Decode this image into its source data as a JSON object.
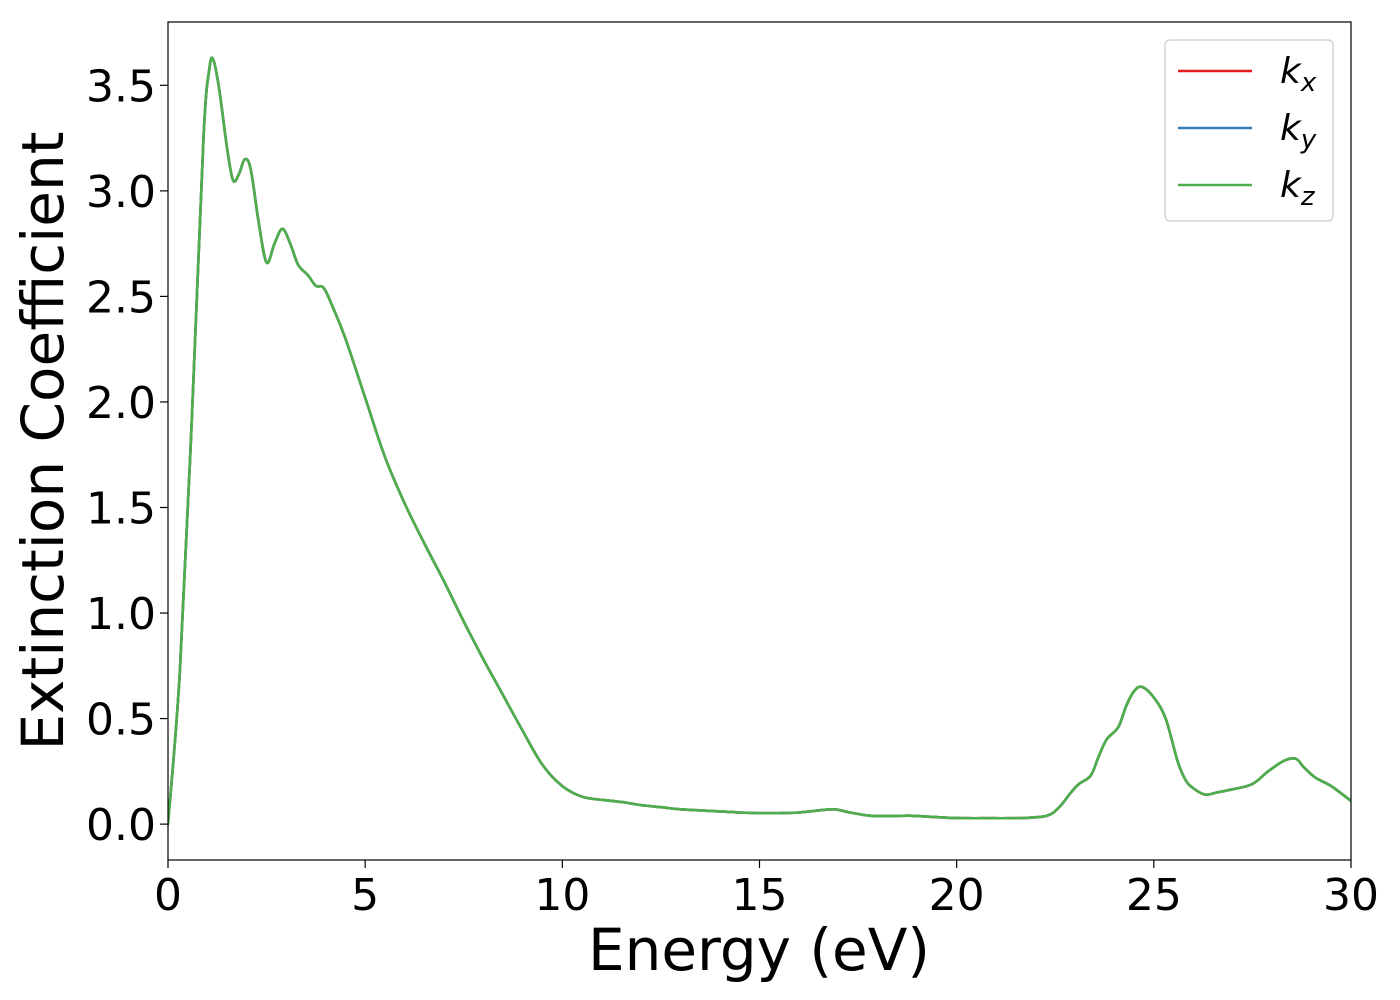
{
  "chart_data": {
    "type": "line",
    "title": "",
    "xlabel": "Energy (eV)",
    "ylabel": "Extinction Coefficient",
    "xlim": [
      0,
      30
    ],
    "ylim": [
      -0.17,
      3.8
    ],
    "xticks": [
      0,
      5,
      10,
      15,
      20,
      25,
      30
    ],
    "xtick_labels": [
      "0",
      "5",
      "10",
      "15",
      "20",
      "25",
      "30"
    ],
    "yticks": [
      0.0,
      0.5,
      1.0,
      1.5,
      2.0,
      2.5,
      3.0,
      3.5
    ],
    "ytick_labels": [
      "0.0",
      "0.5",
      "1.0",
      "1.5",
      "2.0",
      "2.5",
      "3.0",
      "3.5"
    ],
    "grid": false,
    "legend": {
      "placement": "top-right"
    },
    "x": [
      0,
      0.3,
      0.6,
      0.9,
      1.05,
      1.15,
      1.3,
      1.5,
      1.65,
      1.8,
      1.95,
      2.1,
      2.3,
      2.5,
      2.7,
      2.9,
      3.1,
      3.3,
      3.55,
      3.75,
      3.95,
      4.2,
      4.5,
      5.0,
      5.5,
      6.0,
      6.5,
      7.0,
      7.5,
      8.0,
      8.5,
      9.0,
      9.5,
      10.0,
      10.5,
      11.0,
      11.5,
      12.0,
      12.5,
      13.0,
      13.5,
      14.0,
      14.5,
      15.0,
      15.5,
      16.0,
      16.5,
      16.9,
      17.3,
      17.8,
      18.3,
      18.8,
      19.3,
      19.8,
      20.3,
      20.8,
      21.3,
      21.8,
      22.3,
      22.6,
      22.9,
      23.1,
      23.4,
      23.6,
      23.8,
      24.1,
      24.3,
      24.5,
      24.7,
      25.0,
      25.3,
      25.6,
      25.8,
      26.0,
      26.3,
      26.6,
      27.0,
      27.5,
      27.9,
      28.3,
      28.6,
      28.8,
      29.1,
      29.5,
      30.0
    ],
    "series": [
      {
        "name": "k_x",
        "color": "#e41a1c",
        "values": [
          0.0,
          0.72,
          1.9,
          3.25,
          3.58,
          3.62,
          3.48,
          3.2,
          3.05,
          3.08,
          3.15,
          3.1,
          2.85,
          2.66,
          2.75,
          2.82,
          2.75,
          2.65,
          2.6,
          2.55,
          2.54,
          2.44,
          2.3,
          2.02,
          1.74,
          1.52,
          1.33,
          1.15,
          0.96,
          0.78,
          0.61,
          0.44,
          0.28,
          0.18,
          0.13,
          0.115,
          0.105,
          0.09,
          0.08,
          0.07,
          0.065,
          0.06,
          0.055,
          0.052,
          0.052,
          0.055,
          0.065,
          0.07,
          0.055,
          0.04,
          0.038,
          0.04,
          0.035,
          0.03,
          0.028,
          0.028,
          0.028,
          0.03,
          0.04,
          0.08,
          0.15,
          0.19,
          0.23,
          0.32,
          0.4,
          0.46,
          0.56,
          0.63,
          0.65,
          0.6,
          0.5,
          0.3,
          0.21,
          0.17,
          0.14,
          0.15,
          0.165,
          0.19,
          0.25,
          0.3,
          0.31,
          0.27,
          0.22,
          0.18,
          0.11
        ]
      },
      {
        "name": "k_y",
        "color": "#377eb8",
        "values": [
          0.0,
          0.72,
          1.9,
          3.25,
          3.58,
          3.62,
          3.48,
          3.2,
          3.05,
          3.08,
          3.15,
          3.1,
          2.85,
          2.66,
          2.75,
          2.82,
          2.75,
          2.65,
          2.6,
          2.55,
          2.54,
          2.44,
          2.3,
          2.02,
          1.74,
          1.52,
          1.33,
          1.15,
          0.96,
          0.78,
          0.61,
          0.44,
          0.28,
          0.18,
          0.13,
          0.115,
          0.105,
          0.09,
          0.08,
          0.07,
          0.065,
          0.06,
          0.055,
          0.052,
          0.052,
          0.055,
          0.065,
          0.07,
          0.055,
          0.04,
          0.038,
          0.04,
          0.035,
          0.03,
          0.028,
          0.028,
          0.028,
          0.03,
          0.04,
          0.08,
          0.15,
          0.19,
          0.23,
          0.32,
          0.4,
          0.46,
          0.56,
          0.63,
          0.65,
          0.6,
          0.5,
          0.3,
          0.21,
          0.17,
          0.14,
          0.15,
          0.165,
          0.19,
          0.25,
          0.3,
          0.31,
          0.27,
          0.22,
          0.18,
          0.11
        ]
      },
      {
        "name": "k_z",
        "color": "#4daf4a",
        "values": [
          0.0,
          0.72,
          1.9,
          3.25,
          3.58,
          3.62,
          3.48,
          3.2,
          3.05,
          3.08,
          3.15,
          3.1,
          2.85,
          2.66,
          2.75,
          2.82,
          2.75,
          2.65,
          2.6,
          2.55,
          2.54,
          2.44,
          2.3,
          2.02,
          1.74,
          1.52,
          1.33,
          1.15,
          0.96,
          0.78,
          0.61,
          0.44,
          0.28,
          0.18,
          0.13,
          0.115,
          0.105,
          0.09,
          0.08,
          0.07,
          0.065,
          0.06,
          0.055,
          0.052,
          0.052,
          0.055,
          0.065,
          0.07,
          0.055,
          0.04,
          0.038,
          0.04,
          0.035,
          0.03,
          0.028,
          0.028,
          0.028,
          0.03,
          0.04,
          0.08,
          0.15,
          0.19,
          0.23,
          0.32,
          0.4,
          0.46,
          0.56,
          0.63,
          0.65,
          0.6,
          0.5,
          0.3,
          0.21,
          0.17,
          0.14,
          0.15,
          0.165,
          0.19,
          0.25,
          0.3,
          0.31,
          0.27,
          0.22,
          0.18,
          0.11
        ]
      }
    ],
    "legend_entries": [
      {
        "base": "k",
        "sub": "x",
        "color": "#e41a1c"
      },
      {
        "base": "k",
        "sub": "y",
        "color": "#377eb8"
      },
      {
        "base": "k",
        "sub": "z",
        "color": "#4daf4a"
      }
    ]
  }
}
